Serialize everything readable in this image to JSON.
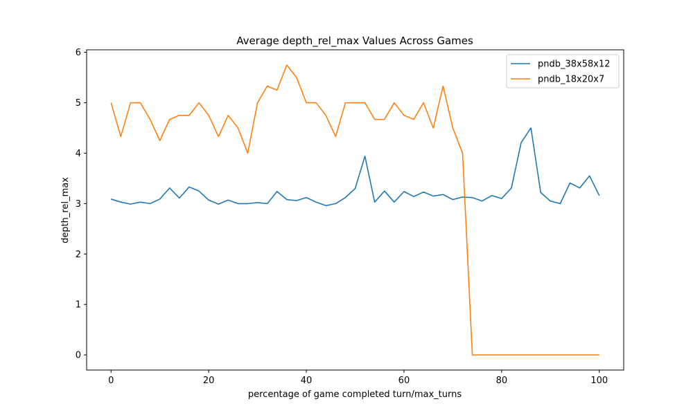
{
  "chart_data": {
    "type": "line",
    "title": "Average depth_rel_max Values Across Games",
    "xlabel": "percentage of game completed turn/max_turns",
    "ylabel": "depth_rel_max",
    "xlim": [
      -5,
      105
    ],
    "ylim": [
      -0.3,
      6.05
    ],
    "xticks": [
      0,
      20,
      40,
      60,
      80,
      100
    ],
    "yticks": [
      0,
      1,
      2,
      3,
      4,
      5,
      6
    ],
    "grid": false,
    "legend_position": "top-right",
    "x": [
      0,
      2,
      4,
      6,
      8,
      10,
      12,
      14,
      16,
      18,
      20,
      22,
      24,
      26,
      28,
      30,
      32,
      34,
      36,
      38,
      40,
      42,
      44,
      46,
      48,
      50,
      52,
      54,
      56,
      58,
      60,
      62,
      64,
      66,
      68,
      70,
      72,
      74,
      76,
      78,
      80,
      82,
      84,
      86,
      88,
      90,
      92,
      94,
      96,
      98,
      100
    ],
    "series": [
      {
        "name": "pndb_38x58x12",
        "color": "#1f77b4",
        "values": [
          3.09,
          3.03,
          2.99,
          3.03,
          3.0,
          3.09,
          3.31,
          3.11,
          3.33,
          3.25,
          3.07,
          2.99,
          3.07,
          3.0,
          3.0,
          3.02,
          3.0,
          3.24,
          3.08,
          3.06,
          3.12,
          3.03,
          2.96,
          3.0,
          3.12,
          3.3,
          3.94,
          3.03,
          3.25,
          3.03,
          3.24,
          3.14,
          3.23,
          3.15,
          3.18,
          3.08,
          3.13,
          3.12,
          3.05,
          3.16,
          3.1,
          3.31,
          4.21,
          4.5,
          3.22,
          3.05,
          3.0,
          3.41,
          3.31,
          3.55,
          3.16
        ]
      },
      {
        "name": "pndb_18x20x7",
        "color": "#ff7f0e",
        "values": [
          5.0,
          4.33,
          5.0,
          5.0,
          4.67,
          4.25,
          4.67,
          4.75,
          4.75,
          5.0,
          4.75,
          4.33,
          4.75,
          4.5,
          4.0,
          5.0,
          5.33,
          5.25,
          5.75,
          5.5,
          5.0,
          5.0,
          4.75,
          4.33,
          5.0,
          5.0,
          5.0,
          4.67,
          4.67,
          5.0,
          4.75,
          4.67,
          5.0,
          4.5,
          5.33,
          4.5,
          4.0,
          0.0,
          0.0,
          0.0,
          0.0,
          0.0,
          0.0,
          0.0,
          0.0,
          0.0,
          0.0,
          0.0,
          0.0,
          0.0,
          0.0
        ]
      }
    ]
  }
}
